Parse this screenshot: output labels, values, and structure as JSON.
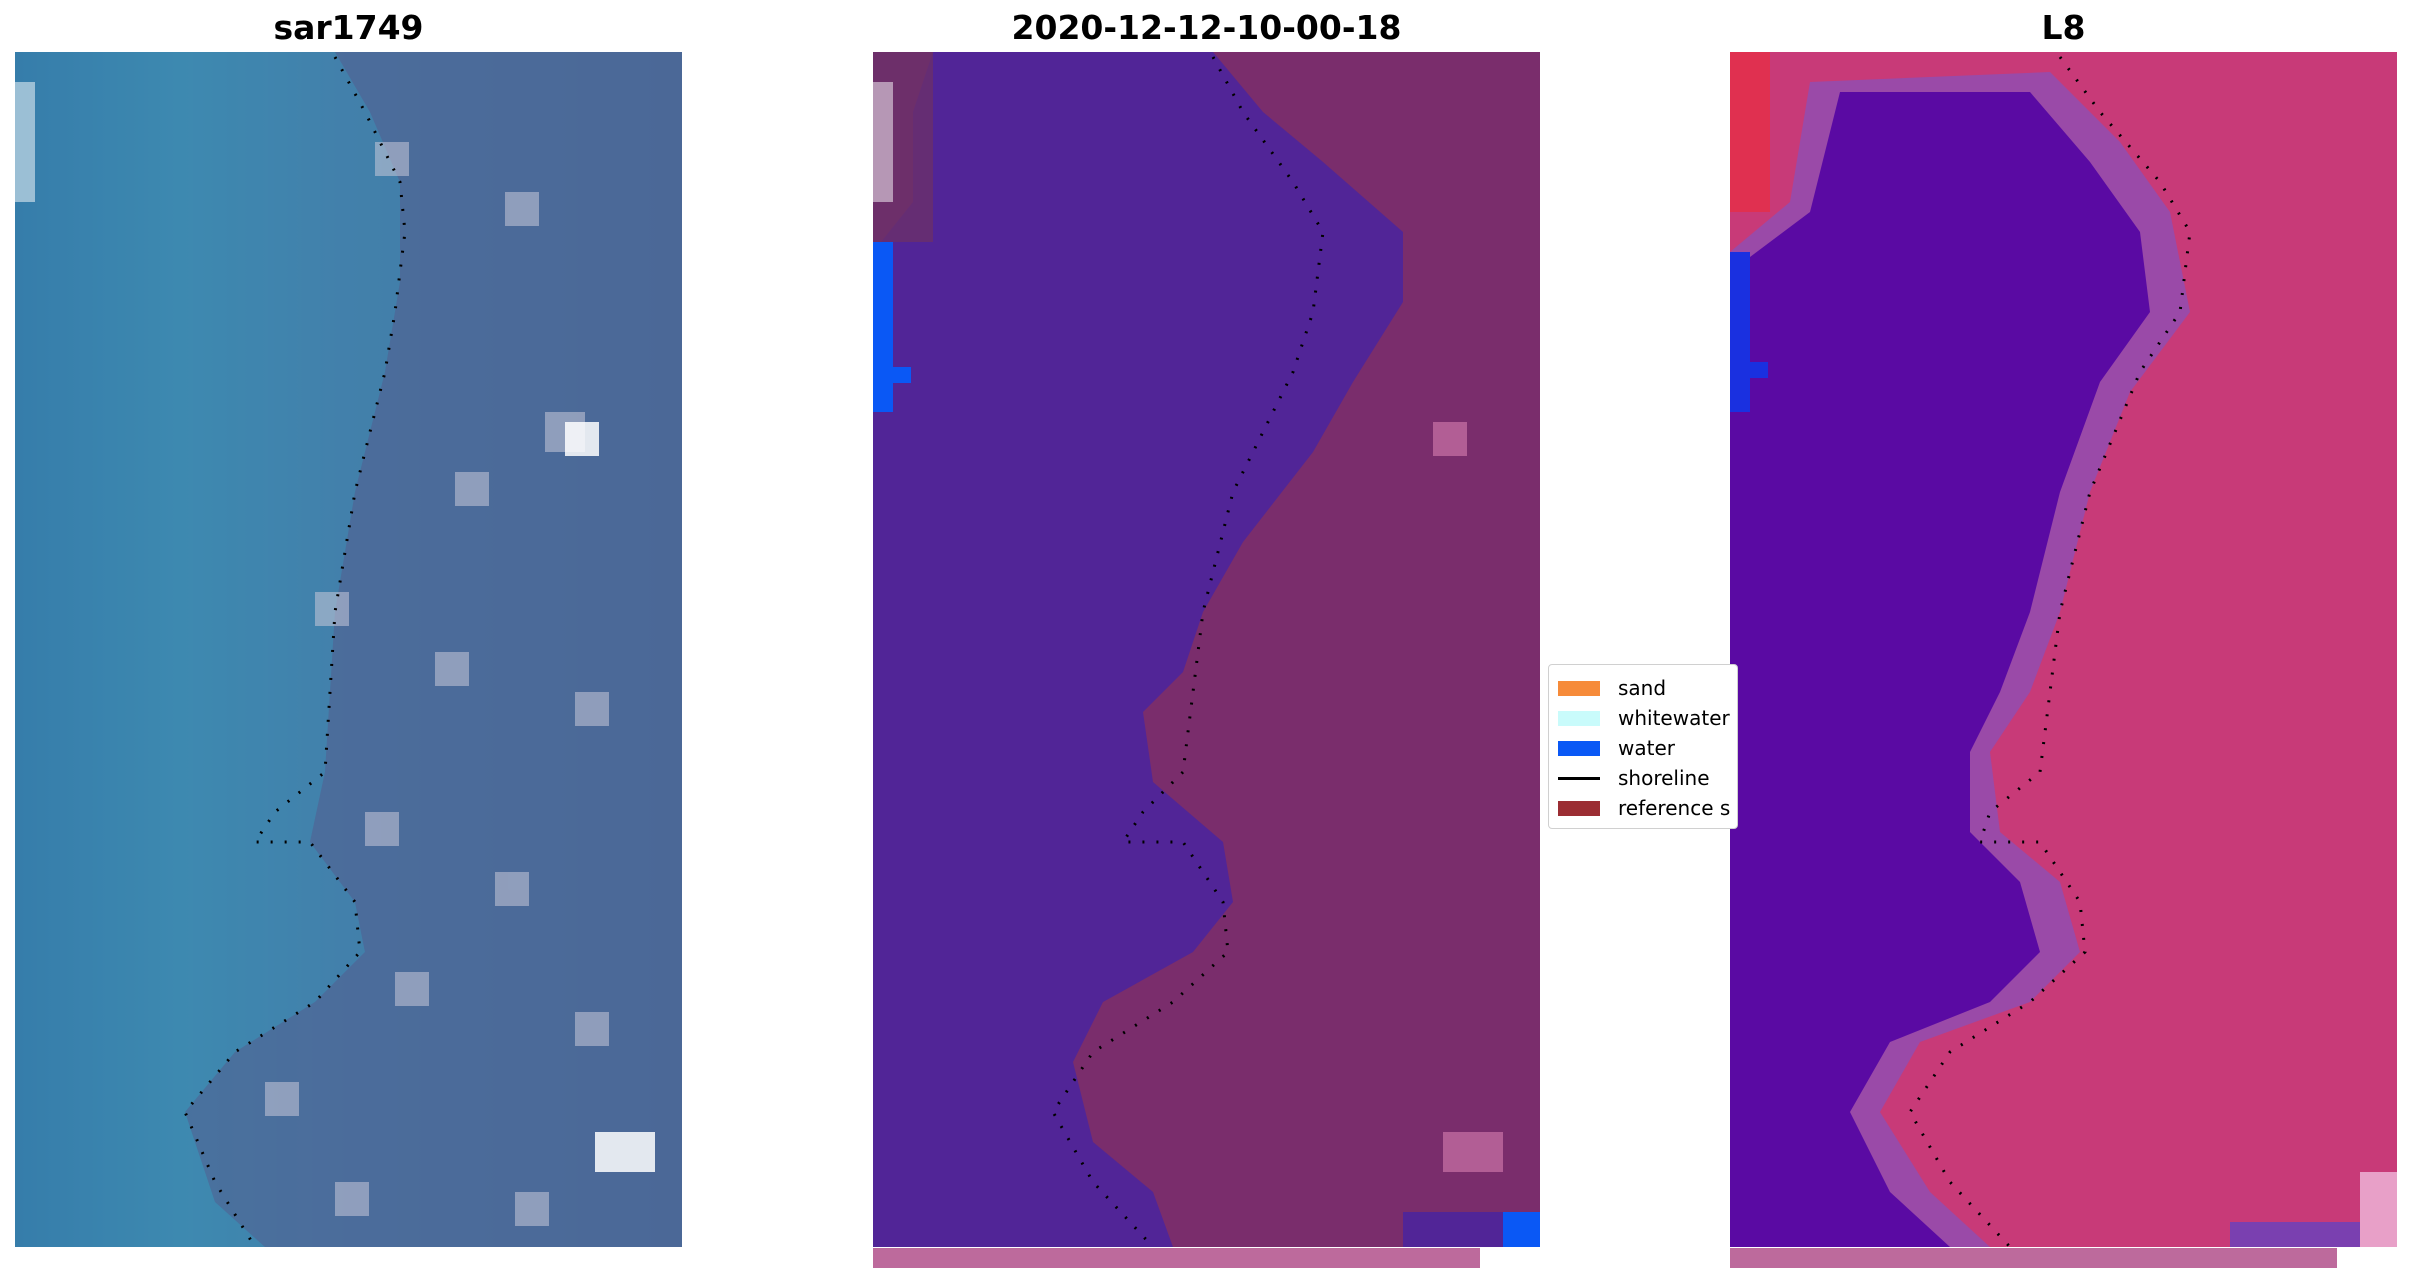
{
  "panels": [
    {
      "title": "sar1749",
      "kind": "rgb-satellite"
    },
    {
      "title": "2020-12-12-10-00-18",
      "kind": "classified-overlay"
    },
    {
      "title": "L8",
      "kind": "false-color"
    }
  ],
  "legend": {
    "items": [
      {
        "label": "sand",
        "color": "#f68b3a",
        "type": "patch"
      },
      {
        "label": "whitewater",
        "color": "#c9fbfb",
        "type": "patch"
      },
      {
        "label": "water",
        "color": "#0a58f5",
        "type": "patch"
      },
      {
        "label": "shoreline",
        "color": "#000000",
        "type": "line"
      },
      {
        "label": "reference s",
        "color": "#9b2d33",
        "type": "patch"
      }
    ]
  },
  "colors": {
    "rgb_water": "#3f86ad",
    "rgb_land": "#4a6896",
    "class_water": "#512597",
    "class_land": "#7a2d6c",
    "fc_water": "#5a0aa3",
    "fc_land": "#c83a78",
    "fc_margin": "#9a4aa8"
  }
}
